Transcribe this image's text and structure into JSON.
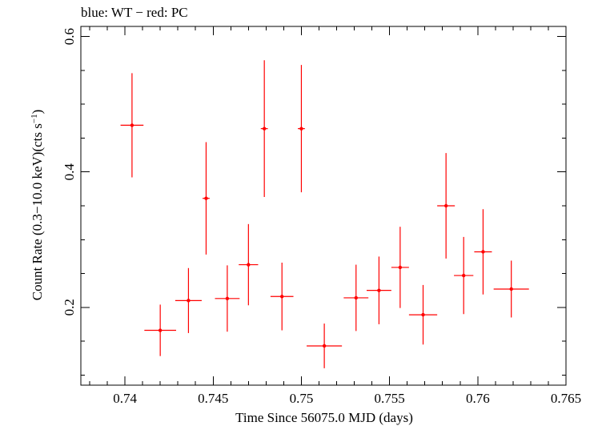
{
  "chart_data": {
    "type": "scatter",
    "title": "blue: WT − red: PC",
    "xlabel": "Time Since 56075.0 MJD (days)",
    "ylabel_main": "Count Rate (0.3−10.0 keV)(cts s",
    "ylabel_sup": "−1",
    "ylabel_close": ")",
    "xlim": [
      0.7375,
      0.765
    ],
    "ylim": [
      0.085,
      0.615
    ],
    "x_ticks": [
      0.74,
      0.745,
      0.75,
      0.755,
      0.76,
      0.765
    ],
    "x_tick_labels": [
      "0.74",
      "0.745",
      "0.75",
      "0.755",
      "0.76",
      "0.765"
    ],
    "x_minor_step": 0.001,
    "y_ticks": [
      0.2,
      0.4,
      0.6
    ],
    "y_tick_labels": [
      "0.2",
      "0.4",
      "0.6"
    ],
    "y_minor_step": 0.05,
    "grid": false,
    "series": [
      {
        "color": "#ff0000",
        "points": [
          {
            "x": 0.7404,
            "xerr": 0.00065,
            "y": 0.469,
            "yerr_lo": 0.077,
            "yerr_hi": 0.077
          },
          {
            "x": 0.742,
            "xerr": 0.0009,
            "y": 0.166,
            "yerr_lo": 0.038,
            "yerr_hi": 0.038
          },
          {
            "x": 0.7436,
            "xerr": 0.00075,
            "y": 0.21,
            "yerr_lo": 0.048,
            "yerr_hi": 0.048
          },
          {
            "x": 0.7446,
            "xerr": 0.0002,
            "y": 0.361,
            "yerr_lo": 0.083,
            "yerr_hi": 0.083
          },
          {
            "x": 0.7458,
            "xerr": 0.0007,
            "y": 0.213,
            "yerr_lo": 0.049,
            "yerr_hi": 0.049
          },
          {
            "x": 0.747,
            "xerr": 0.00055,
            "y": 0.263,
            "yerr_lo": 0.06,
            "yerr_hi": 0.06
          },
          {
            "x": 0.7479,
            "xerr": 0.0002,
            "y": 0.464,
            "yerr_lo": 0.101,
            "yerr_hi": 0.101
          },
          {
            "x": 0.7489,
            "xerr": 0.00065,
            "y": 0.216,
            "yerr_lo": 0.05,
            "yerr_hi": 0.05
          },
          {
            "x": 0.75,
            "xerr": 0.0002,
            "y": 0.464,
            "yerr_lo": 0.094,
            "yerr_hi": 0.094
          },
          {
            "x": 0.7513,
            "xerr": 0.001,
            "y": 0.143,
            "yerr_lo": 0.033,
            "yerr_hi": 0.033
          },
          {
            "x": 0.7531,
            "xerr": 0.0007,
            "y": 0.214,
            "yerr_lo": 0.049,
            "yerr_hi": 0.049
          },
          {
            "x": 0.7544,
            "xerr": 0.0007,
            "y": 0.225,
            "yerr_lo": 0.05,
            "yerr_hi": 0.05
          },
          {
            "x": 0.7556,
            "xerr": 0.0005,
            "y": 0.259,
            "yerr_lo": 0.06,
            "yerr_hi": 0.06
          },
          {
            "x": 0.7569,
            "xerr": 0.0008,
            "y": 0.189,
            "yerr_lo": 0.044,
            "yerr_hi": 0.044
          },
          {
            "x": 0.7582,
            "xerr": 0.0005,
            "y": 0.35,
            "yerr_lo": 0.078,
            "yerr_hi": 0.078
          },
          {
            "x": 0.7592,
            "xerr": 0.00055,
            "y": 0.247,
            "yerr_lo": 0.057,
            "yerr_hi": 0.057
          },
          {
            "x": 0.7603,
            "xerr": 0.0005,
            "y": 0.282,
            "yerr_lo": 0.063,
            "yerr_hi": 0.063
          },
          {
            "x": 0.7619,
            "xerr": 0.001,
            "y": 0.227,
            "yerr_lo": 0.042,
            "yerr_hi": 0.042
          }
        ]
      }
    ]
  }
}
